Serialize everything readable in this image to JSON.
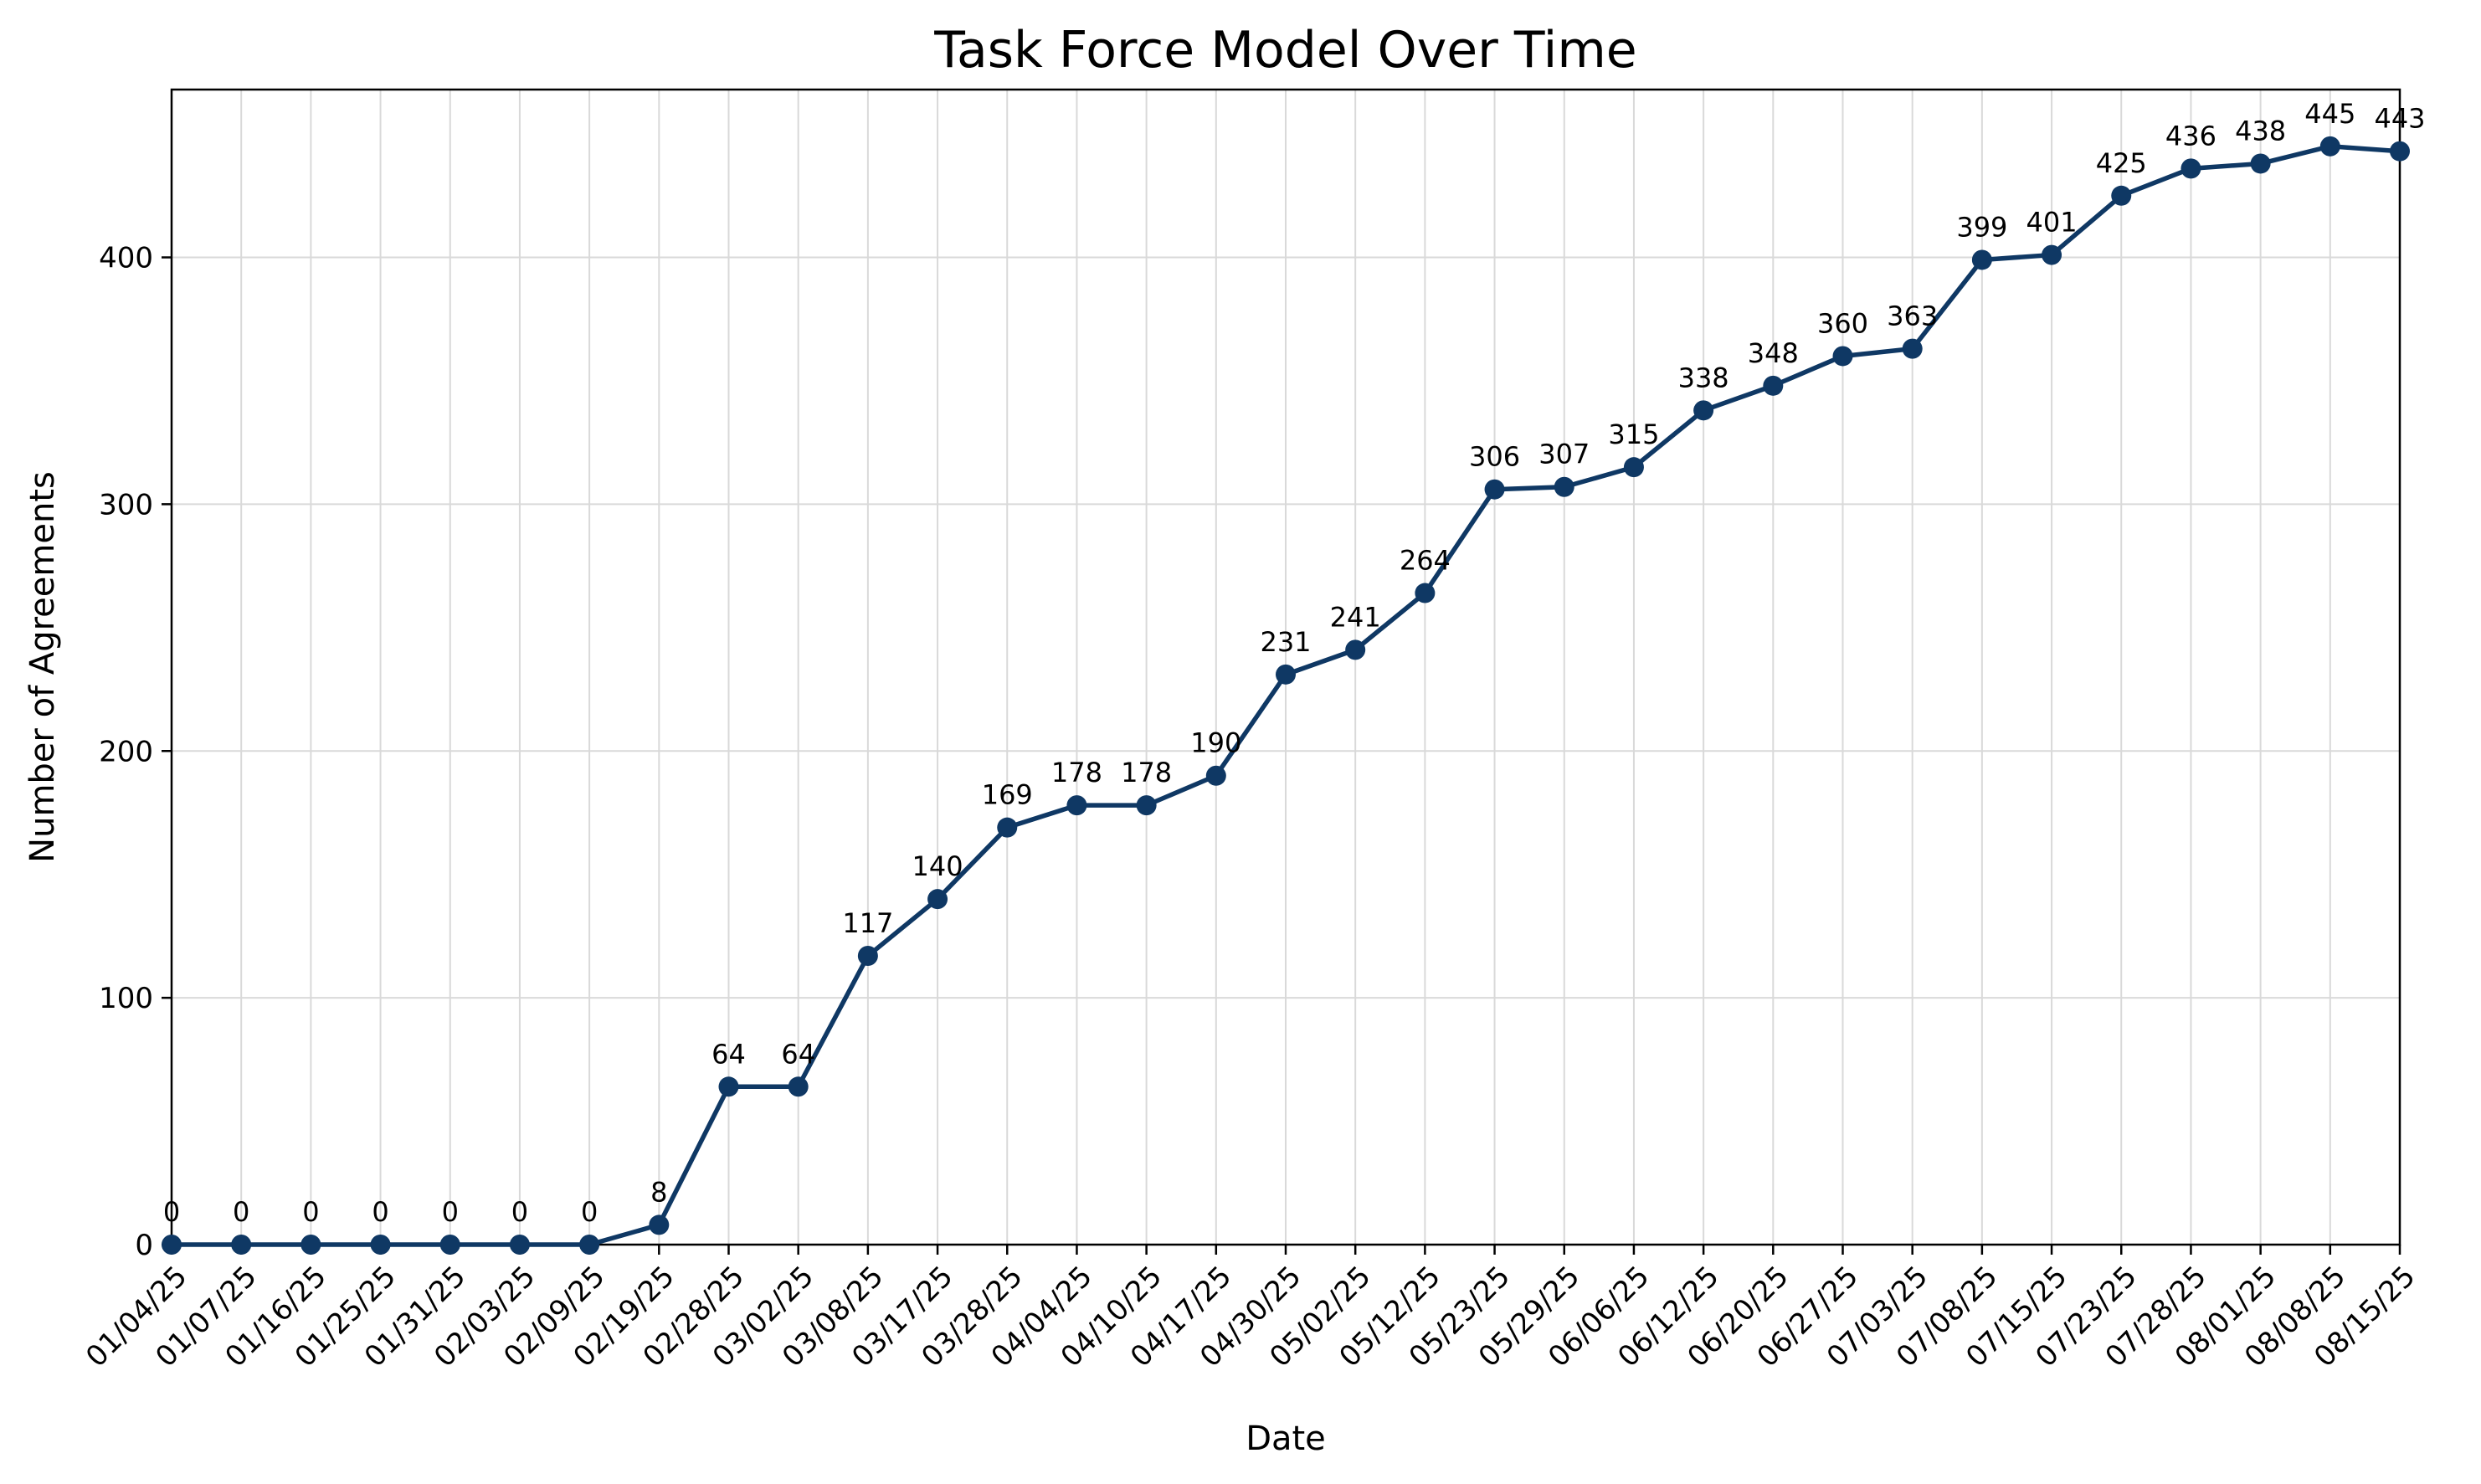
{
  "chart_data": {
    "type": "line",
    "title": "Task Force Model Over Time",
    "xlabel": "Date",
    "ylabel": "Number of Agreements",
    "ylim": [
      0,
      468
    ],
    "yticks": [
      0,
      100,
      200,
      300,
      400
    ],
    "grid": true,
    "categories": [
      "01/04/25",
      "01/07/25",
      "01/16/25",
      "01/25/25",
      "01/31/25",
      "02/03/25",
      "02/09/25",
      "02/19/25",
      "02/28/25",
      "03/02/25",
      "03/08/25",
      "03/17/25",
      "03/28/25",
      "04/04/25",
      "04/10/25",
      "04/17/25",
      "04/30/25",
      "05/02/25",
      "05/12/25",
      "05/23/25",
      "05/29/25",
      "06/06/25",
      "06/12/25",
      "06/20/25",
      "06/27/25",
      "07/03/25",
      "07/08/25",
      "07/15/25",
      "07/23/25",
      "07/28/25",
      "08/01/25",
      "08/08/25",
      "08/15/25"
    ],
    "series": [
      {
        "name": "Agreements",
        "color": "#0f3864",
        "values": [
          0,
          0,
          0,
          0,
          0,
          0,
          0,
          8,
          64,
          64,
          117,
          140,
          169,
          178,
          178,
          190,
          231,
          241,
          264,
          306,
          307,
          315,
          338,
          348,
          360,
          363,
          399,
          401,
          425,
          436,
          438,
          445,
          443
        ]
      }
    ]
  }
}
